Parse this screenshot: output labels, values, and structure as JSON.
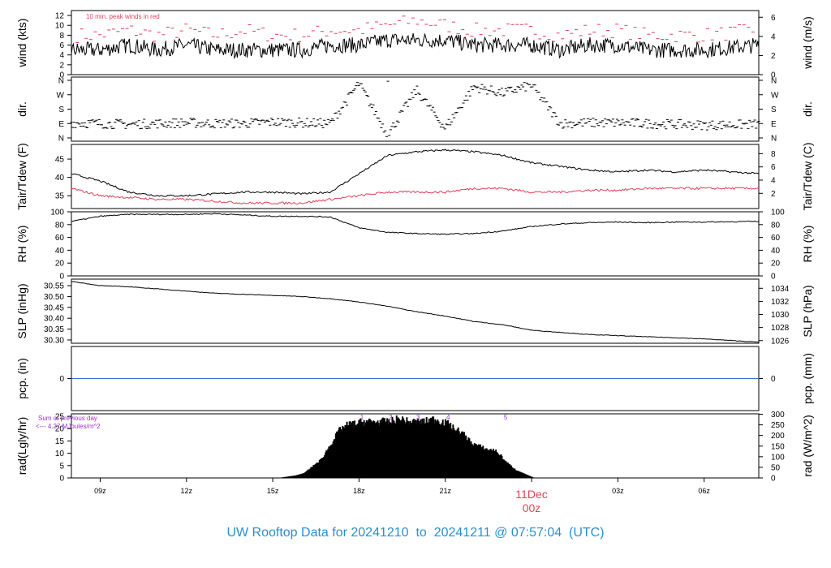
{
  "colors": {
    "axis": "#000000",
    "trace": "#000000",
    "red_series": "#e0405a",
    "precip_line": "#3a6fd0",
    "solar_annotation": "#9b30d8",
    "date_label": "#e0405a",
    "footer_title": "#2a8fd0"
  },
  "footer": {
    "title": "UW Rooftop Data for 20241210  to  20241211 @ 07:57:04  (UTC)"
  },
  "date_marker": {
    "day_label": "11Dec",
    "hour_label": "00z"
  },
  "chart_data": [
    {
      "id": "wind",
      "type": "line",
      "ylabel_left": "wind (kts)",
      "ylabel_right": "wind (m/s)",
      "annotation": "10 min. peak winds in red",
      "ylim": [
        0,
        13
      ],
      "yticks_left": [
        0,
        2,
        4,
        6,
        8,
        10,
        12
      ],
      "ylim_right": [
        0,
        6.7
      ],
      "yticks_right": [
        0,
        2,
        4,
        6
      ],
      "series": [
        {
          "name": "10 min. peak winds",
          "color": "#e0405a",
          "style": "dashes",
          "x": [
            8,
            9,
            10,
            11,
            12,
            13,
            14,
            15,
            16,
            17,
            18,
            19,
            20,
            21,
            22,
            23,
            24,
            25,
            26,
            27,
            28,
            29,
            30,
            31.9
          ],
          "values": [
            8,
            8,
            9,
            8,
            9,
            8,
            9,
            8,
            8,
            9,
            9,
            10,
            11,
            10,
            9,
            9,
            9,
            8,
            9,
            9,
            8,
            8,
            8,
            9
          ]
        },
        {
          "name": "wind speed",
          "color": "#000000",
          "x": [
            8,
            9,
            10,
            11,
            12,
            13,
            14,
            15,
            16,
            17,
            18,
            19,
            20,
            21,
            22,
            23,
            24,
            25,
            26,
            27,
            28,
            29,
            30,
            31.9
          ],
          "values": [
            5,
            5,
            6,
            5,
            6,
            5,
            5,
            5,
            5,
            6,
            6,
            7,
            7,
            7,
            6,
            6,
            6,
            5,
            6,
            6,
            5,
            5,
            5,
            6
          ]
        }
      ]
    },
    {
      "id": "direction",
      "type": "scatter",
      "ylabel_left": "dir.",
      "ylabel_right": "dir.",
      "ytick_labels": [
        "N",
        "E",
        "S",
        "W",
        "N"
      ],
      "series": [
        {
          "name": "wind direction",
          "color": "#000000",
          "x": [
            8,
            9,
            10,
            11,
            12,
            13,
            14,
            15,
            16,
            17,
            18,
            19,
            20,
            21,
            22,
            23,
            24,
            25,
            26,
            27,
            28,
            29,
            30,
            31.9
          ],
          "values": [
            95,
            90,
            85,
            90,
            95,
            90,
            90,
            100,
            95,
            90,
            340,
            20,
            300,
            60,
            320,
            280,
            330,
            90,
            95,
            95,
            90,
            85,
            80,
            85
          ]
        }
      ]
    },
    {
      "id": "temperature",
      "type": "line",
      "ylabel_left": "Tair/Tdew (F)",
      "ylabel_right": "Tair/Tdew (C)",
      "ylim": [
        31.5,
        49
      ],
      "yticks_left": [
        35,
        40,
        45
      ],
      "ylim_right": [
        -0.3,
        9.4
      ],
      "yticks_right": [
        2,
        4,
        6,
        8
      ],
      "series": [
        {
          "name": "Tair",
          "color": "#000000",
          "x": [
            8,
            9,
            10,
            11,
            12,
            13,
            14,
            15,
            16,
            17,
            18,
            19,
            20,
            21,
            22,
            23,
            24,
            25,
            26,
            27,
            28,
            29,
            30,
            31.9
          ],
          "values": [
            41,
            39,
            36,
            35,
            35,
            35.5,
            36,
            36,
            35.5,
            36,
            41,
            46,
            47,
            47.5,
            47,
            46,
            44,
            43,
            42,
            41.5,
            42,
            41.5,
            42,
            41
          ]
        },
        {
          "name": "Tdew",
          "color": "#e0405a",
          "x": [
            8,
            9,
            10,
            11,
            12,
            13,
            14,
            15,
            16,
            17,
            18,
            19,
            20,
            21,
            22,
            23,
            24,
            25,
            26,
            27,
            28,
            29,
            30,
            31.9
          ],
          "values": [
            37,
            35,
            34.5,
            34,
            34,
            33.5,
            33,
            33,
            33,
            34,
            35,
            36,
            36,
            36,
            37,
            37,
            36,
            36,
            36.5,
            36.5,
            37,
            37,
            37,
            37
          ]
        }
      ]
    },
    {
      "id": "rh",
      "type": "line",
      "ylabel_left": "RH (%)",
      "ylabel_right": "RH (%)",
      "ylim": [
        0,
        100
      ],
      "yticks_left": [
        0,
        20,
        40,
        60,
        80,
        100
      ],
      "yticks_right": [
        0,
        20,
        40,
        60,
        80,
        100
      ],
      "series": [
        {
          "name": "RH",
          "color": "#000000",
          "x": [
            8,
            9,
            10,
            11,
            12,
            13,
            14,
            15,
            16,
            17,
            18,
            19,
            20,
            21,
            22,
            23,
            24,
            25,
            26,
            27,
            28,
            29,
            30,
            31.9
          ],
          "values": [
            85,
            93,
            96,
            96,
            96,
            97,
            95,
            93,
            93,
            92,
            75,
            68,
            66,
            65,
            66,
            70,
            77,
            81,
            83,
            84,
            83,
            84,
            84,
            85
          ]
        }
      ]
    },
    {
      "id": "slp",
      "type": "line",
      "ylabel_left": "SLP (inHg)",
      "ylabel_right": "SLP (hPa)",
      "ylim": [
        30.285,
        30.58
      ],
      "yticks_left": [
        30.3,
        30.35,
        30.4,
        30.45,
        30.5,
        30.55
      ],
      "ytick_labels_left": [
        "30.30",
        "30.35",
        "30.40",
        "30.45",
        "30.50",
        "30.55"
      ],
      "ylim_right": [
        1025.6,
        1035.4
      ],
      "yticks_right": [
        1026,
        1028,
        1030,
        1032,
        1034
      ],
      "series": [
        {
          "name": "SLP",
          "color": "#000000",
          "x": [
            8,
            9,
            10,
            11,
            12,
            13,
            14,
            15,
            16,
            17,
            18,
            19,
            20,
            21,
            22,
            23,
            24,
            25,
            26,
            27,
            28,
            29,
            30,
            31.9
          ],
          "values": [
            30.57,
            30.55,
            30.545,
            30.535,
            30.525,
            30.515,
            30.51,
            30.505,
            30.5,
            30.49,
            30.475,
            30.455,
            30.43,
            30.41,
            30.385,
            30.37,
            30.345,
            30.335,
            30.325,
            30.32,
            30.315,
            30.31,
            30.305,
            30.29
          ]
        }
      ]
    },
    {
      "id": "precip",
      "type": "line",
      "ylabel_left": "pcp. (in)",
      "ylabel_right": "pcp. (mm)",
      "ylim": [
        -1,
        1
      ],
      "yticks_left": [
        0
      ],
      "yticks_right": [
        0
      ],
      "series": [
        {
          "name": "precipitation",
          "color": "#3a6fd0",
          "x": [
            8,
            31.9
          ],
          "values": [
            0,
            0
          ]
        }
      ]
    },
    {
      "id": "radiation",
      "type": "bar",
      "ylabel_left": "rad(Lgly/hr)",
      "ylabel_right": "rad (W/m^2)",
      "ylim": [
        0,
        26
      ],
      "yticks_left": [
        0,
        5,
        10,
        15,
        20,
        25
      ],
      "ylim_right": [
        0,
        302
      ],
      "yticks_right": [
        0,
        50,
        100,
        150,
        200,
        250,
        300
      ],
      "annotation": "Sum of previous day\n<--- 4.27 MJoules/m^2",
      "hour_marks": [
        {
          "x": 18.1,
          "label": "1"
        },
        {
          "x": 19.1,
          "label": "2"
        },
        {
          "x": 20.05,
          "label": "3"
        },
        {
          "x": 21.1,
          "label": "4"
        },
        {
          "x": 23.1,
          "label": "5"
        }
      ],
      "series": [
        {
          "name": "solar radiation",
          "color": "#000000",
          "x": [
            15.2,
            15.5,
            15.8,
            16.1,
            16.3,
            16.5,
            16.7,
            16.9,
            17.1,
            17.3,
            17.5,
            17.7,
            17.9,
            18.1,
            18.3,
            18.5,
            18.7,
            18.9,
            19.1,
            19.3,
            19.5,
            19.7,
            19.9,
            20.1,
            20.3,
            20.5,
            20.7,
            20.9,
            21.1,
            21.3,
            21.5,
            21.7,
            21.9,
            22.1,
            22.3,
            22.5,
            22.7,
            22.9,
            23.1,
            23.3,
            23.5,
            23.7,
            23.9,
            24.1
          ],
          "values": [
            0,
            0.5,
            1,
            2,
            4,
            6,
            8,
            12,
            16,
            20,
            22,
            23,
            23,
            24,
            24,
            24,
            24,
            24,
            24,
            25,
            25,
            24,
            24,
            24,
            24,
            25,
            25,
            24,
            23,
            21,
            20,
            18,
            15,
            14,
            13,
            12,
            12,
            10,
            7,
            5,
            3,
            2,
            1,
            0
          ]
        }
      ]
    }
  ],
  "xaxis": {
    "xlim": [
      8,
      31.9
    ],
    "ticks": [
      9,
      12,
      15,
      18,
      21,
      24,
      27,
      30
    ],
    "tick_labels": [
      "09z",
      "12z",
      "15z",
      "18z",
      "21z",
      "",
      "03z",
      "06z"
    ]
  }
}
